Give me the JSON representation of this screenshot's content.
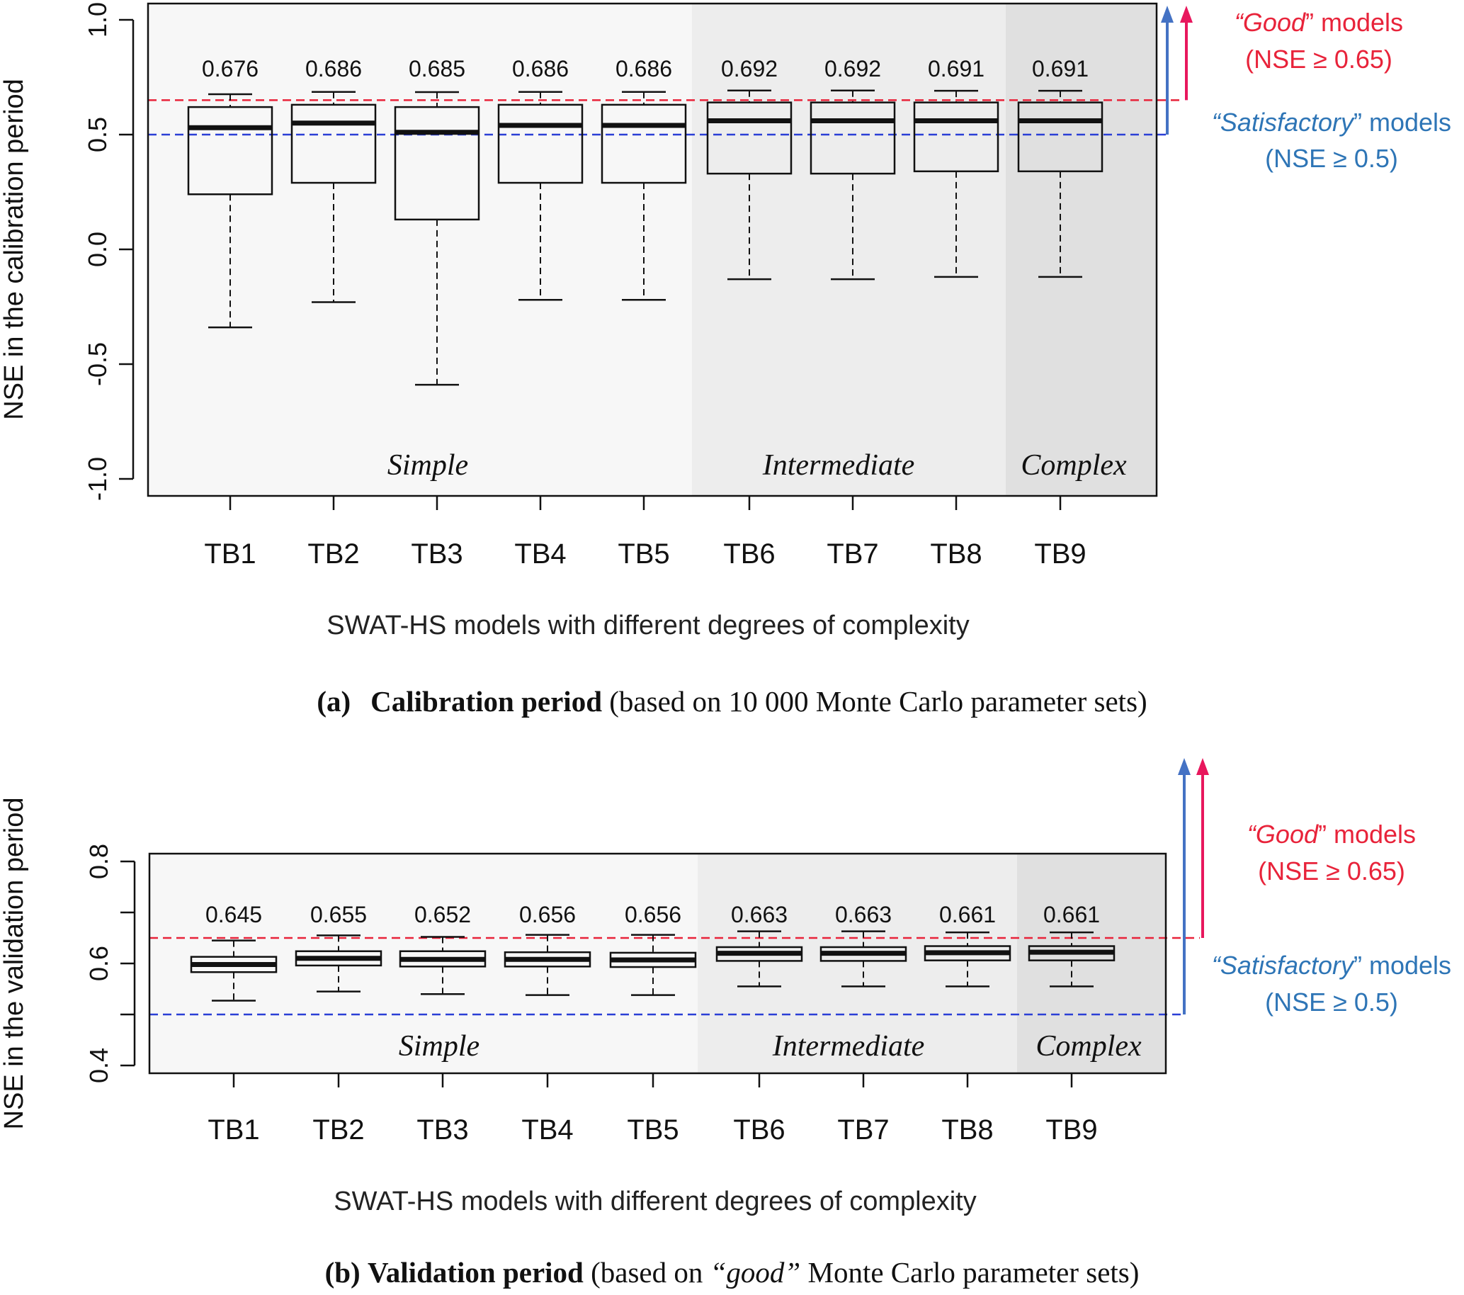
{
  "chart_data": [
    {
      "type": "box",
      "ylabel": "NSE in the calibration period",
      "xlabel": "SWAT-HS models with different degrees of complexity",
      "ylim": [
        -1.0,
        1.0
      ],
      "yticks": [
        "-1.0",
        "-0.5",
        "0.0",
        "0.5",
        "1.0"
      ],
      "categories": [
        "TB1",
        "TB2",
        "TB3",
        "TB4",
        "TB5",
        "TB6",
        "TB7",
        "TB8",
        "TB9"
      ],
      "max_labels": [
        "0.676",
        "0.686",
        "0.685",
        "0.686",
        "0.686",
        "0.692",
        "0.692",
        "0.691",
        "0.691"
      ],
      "boxes": [
        {
          "min": -0.34,
          "q1": 0.24,
          "median": 0.53,
          "q3": 0.62,
          "max": 0.676
        },
        {
          "min": -0.23,
          "q1": 0.29,
          "median": 0.55,
          "q3": 0.63,
          "max": 0.686
        },
        {
          "min": -0.59,
          "q1": 0.13,
          "median": 0.51,
          "q3": 0.62,
          "max": 0.685
        },
        {
          "min": -0.22,
          "q1": 0.29,
          "median": 0.54,
          "q3": 0.63,
          "max": 0.686
        },
        {
          "min": -0.22,
          "q1": 0.29,
          "median": 0.54,
          "q3": 0.63,
          "max": 0.686
        },
        {
          "min": -0.13,
          "q1": 0.33,
          "median": 0.56,
          "q3": 0.64,
          "max": 0.692
        },
        {
          "min": -0.13,
          "q1": 0.33,
          "median": 0.56,
          "q3": 0.64,
          "max": 0.692
        },
        {
          "min": -0.12,
          "q1": 0.34,
          "median": 0.56,
          "q3": 0.64,
          "max": 0.691
        },
        {
          "min": -0.12,
          "q1": 0.34,
          "median": 0.56,
          "q3": 0.64,
          "max": 0.691
        }
      ],
      "thresholds": [
        {
          "value": 0.65,
          "color": "#e8233a"
        },
        {
          "value": 0.5,
          "color": "#2b3fd6"
        }
      ],
      "groups": [
        {
          "label": "Simple",
          "from": 0,
          "to": 4,
          "color": "#f7f7f7"
        },
        {
          "label": "Intermediate",
          "from": 5,
          "to": 7,
          "color": "#ededed"
        },
        {
          "label": "Complex",
          "from": 8,
          "to": 8,
          "color": "#e0e0e0"
        }
      ],
      "annotations": {
        "good_quote_open": "“",
        "good_word": "Good",
        "good_quote_close": "”",
        "good_rest": " models",
        "good_criterion": "(NSE ≥ 0.65)",
        "sat_quote_open": "“",
        "sat_word": "Satisfactory",
        "sat_quote_close": "”",
        "sat_rest": " models",
        "sat_criterion": "(NSE ≥ 0.5)"
      }
    },
    {
      "type": "box",
      "ylabel": "NSE in the validation period",
      "xlabel": "SWAT-HS models with different degrees of complexity",
      "ylim": [
        0.37,
        0.83
      ],
      "yticks": [
        "0.4",
        "0.6",
        "0.8"
      ],
      "minor_yticks": [
        0.5,
        0.7
      ],
      "categories": [
        "TB1",
        "TB2",
        "TB3",
        "TB4",
        "TB5",
        "TB6",
        "TB7",
        "TB8",
        "TB9"
      ],
      "max_labels": [
        "0.645",
        "0.655",
        "0.652",
        "0.656",
        "0.656",
        "0.663",
        "0.663",
        "0.661",
        "0.661"
      ],
      "boxes": [
        {
          "min": 0.527,
          "q1": 0.583,
          "median": 0.598,
          "q3": 0.613,
          "max": 0.645
        },
        {
          "min": 0.545,
          "q1": 0.596,
          "median": 0.61,
          "q3": 0.624,
          "max": 0.655
        },
        {
          "min": 0.54,
          "q1": 0.594,
          "median": 0.608,
          "q3": 0.624,
          "max": 0.652
        },
        {
          "min": 0.538,
          "q1": 0.594,
          "median": 0.608,
          "q3": 0.622,
          "max": 0.656
        },
        {
          "min": 0.538,
          "q1": 0.593,
          "median": 0.607,
          "q3": 0.621,
          "max": 0.656
        },
        {
          "min": 0.555,
          "q1": 0.605,
          "median": 0.62,
          "q3": 0.632,
          "max": 0.663
        },
        {
          "min": 0.555,
          "q1": 0.605,
          "median": 0.62,
          "q3": 0.632,
          "max": 0.663
        },
        {
          "min": 0.555,
          "q1": 0.606,
          "median": 0.621,
          "q3": 0.634,
          "max": 0.661
        },
        {
          "min": 0.555,
          "q1": 0.606,
          "median": 0.622,
          "q3": 0.634,
          "max": 0.661
        }
      ],
      "thresholds": [
        {
          "value": 0.65,
          "color": "#e8233a"
        },
        {
          "value": 0.5,
          "color": "#2b3fd6"
        }
      ],
      "groups": [
        {
          "label": "Simple",
          "from": 0,
          "to": 4,
          "color": "#f7f7f7"
        },
        {
          "label": "Intermediate",
          "from": 5,
          "to": 7,
          "color": "#ededed"
        },
        {
          "label": "Complex",
          "from": 8,
          "to": 8,
          "color": "#e0e0e0"
        }
      ],
      "annotations": {
        "good_quote_open": "“",
        "good_word": "Good",
        "good_quote_close": "”",
        "good_rest": " models",
        "good_criterion": "(NSE ≥ 0.65)",
        "sat_quote_open": "“",
        "sat_word": "Satisfactory",
        "sat_quote_close": "”",
        "sat_rest": " models",
        "sat_criterion": "(NSE ≥ 0.5)"
      }
    }
  ],
  "captions": {
    "a_label": "(a)",
    "a_bold": "Calibration period",
    "a_rest": " (based on 10 000 Monte Carlo parameter sets)",
    "b_label": "(b)",
    "b_bold": "Validation period",
    "b_pre": " (based on ",
    "b_italic": "“good”",
    "b_post": " Monte Carlo parameter sets)"
  },
  "colors": {
    "good": "#e8233a",
    "good_arrow": "#e8175d",
    "satisfactory": "#2e75b6",
    "sat_line": "#2b3fd6",
    "sat_arrow": "#4472c4"
  }
}
